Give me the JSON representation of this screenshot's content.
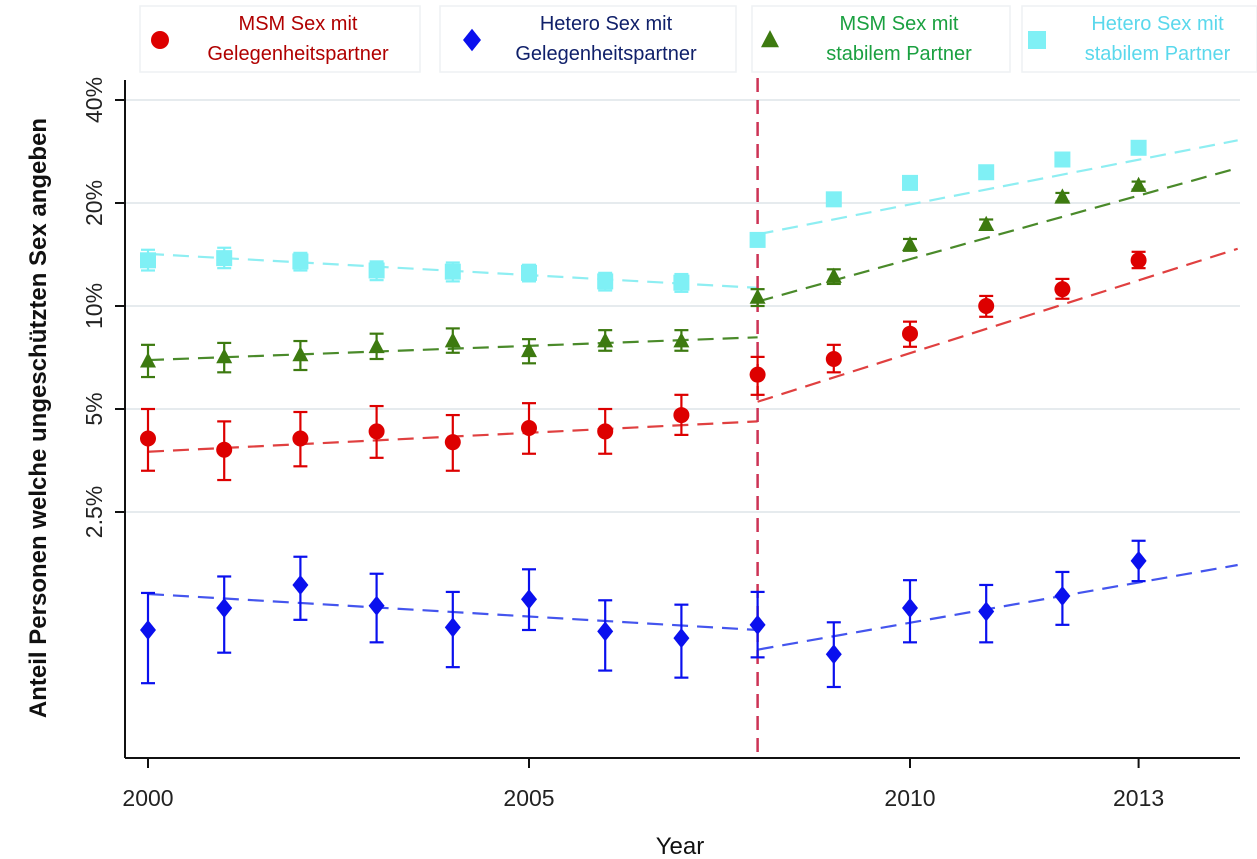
{
  "chart_data": {
    "type": "scatter",
    "title": "",
    "xlabel": "Year",
    "ylabel": "Anteil Personen welche ungeschützten Sex angeben",
    "y_scale": "log",
    "xlim": [
      1999.95,
      2014.3
    ],
    "ylim": [
      0.7,
      43
    ],
    "x_ticks": [
      2000,
      2005,
      2010,
      2013
    ],
    "x_tick_labels": [
      "2000",
      "2005",
      "2010",
      "2013"
    ],
    "y_ticks": [
      2.5,
      5,
      10,
      20,
      40
    ],
    "y_tick_labels": [
      "2.5%",
      "5%",
      "10%",
      "20%",
      "40%"
    ],
    "grid": true,
    "legend_position": "top",
    "reference_line": {
      "x": 2008,
      "color": "#cc3355",
      "style": "dashed"
    },
    "series": [
      {
        "name": "MSM  Sex mit Gelegenheitspartner",
        "color": "#dd0000",
        "line_color": "#e04040",
        "marker": "circle",
        "x": [
          2000,
          2001,
          2002,
          2003,
          2004,
          2005,
          2006,
          2007,
          2008,
          2009,
          2010,
          2011,
          2012,
          2013
        ],
        "y": [
          4.1,
          3.8,
          4.1,
          4.3,
          4.0,
          4.4,
          4.3,
          4.8,
          6.3,
          7.0,
          8.3,
          10.0,
          11.2,
          13.6
        ],
        "lower": [
          3.3,
          3.1,
          3.4,
          3.6,
          3.3,
          3.7,
          3.7,
          4.2,
          5.5,
          6.4,
          7.6,
          9.3,
          10.5,
          12.9
        ],
        "upper": [
          5.0,
          4.6,
          4.9,
          5.1,
          4.8,
          5.2,
          5.0,
          5.5,
          7.1,
          7.7,
          9.0,
          10.7,
          12.0,
          14.4
        ],
        "trend": [
          [
            2000,
            3.75
          ],
          [
            2008,
            4.6
          ],
          [
            2008,
            5.25
          ],
          [
            2014.3,
            14.7
          ]
        ]
      },
      {
        "name": "Hetero  Sex mit Gelegenheitspartner",
        "color": "#0a10ee",
        "line_color": "#4455ee",
        "marker": "diamond",
        "x": [
          2000,
          2001,
          2002,
          2003,
          2004,
          2005,
          2006,
          2007,
          2008,
          2009,
          2010,
          2011,
          2012,
          2013
        ],
        "y": [
          1.13,
          1.31,
          1.53,
          1.33,
          1.15,
          1.39,
          1.12,
          1.07,
          1.17,
          0.96,
          1.31,
          1.28,
          1.42,
          1.8
        ],
        "lower": [
          0.79,
          0.97,
          1.21,
          1.04,
          0.88,
          1.13,
          0.86,
          0.82,
          0.94,
          0.77,
          1.04,
          1.04,
          1.17,
          1.57
        ],
        "upper": [
          1.45,
          1.62,
          1.85,
          1.65,
          1.46,
          1.7,
          1.38,
          1.34,
          1.46,
          1.19,
          1.58,
          1.53,
          1.67,
          2.06
        ],
        "trend": [
          [
            2000,
            1.44
          ],
          [
            2008,
            1.13
          ],
          [
            2008,
            0.99
          ],
          [
            2014.3,
            1.75
          ]
        ]
      },
      {
        "name": "MSM  Sex mit stabilem Partner",
        "color": "#3d7a10",
        "line_color": "#4a8a2a",
        "marker": "triangle",
        "x": [
          2000,
          2001,
          2002,
          2003,
          2004,
          2005,
          2006,
          2007,
          2008,
          2009,
          2010,
          2011,
          2012,
          2013
        ],
        "y": [
          6.9,
          7.1,
          7.2,
          7.6,
          7.9,
          7.4,
          7.9,
          7.9,
          10.6,
          12.2,
          15.1,
          17.3,
          20.8,
          22.5
        ],
        "lower": [
          6.2,
          6.4,
          6.5,
          7.0,
          7.3,
          6.8,
          7.4,
          7.4,
          10.0,
          11.6,
          14.5,
          16.7,
          20.2,
          21.9
        ],
        "upper": [
          7.7,
          7.8,
          7.9,
          8.3,
          8.6,
          8.0,
          8.5,
          8.5,
          11.2,
          12.8,
          15.7,
          17.9,
          21.4,
          23.1
        ],
        "trend": [
          [
            2000,
            6.95
          ],
          [
            2008,
            8.1
          ],
          [
            2008,
            10.3
          ],
          [
            2014.3,
            25.3
          ]
        ]
      },
      {
        "name": "Hetero  Sex mit stabilem Partner",
        "color": "#7ff0f5",
        "line_color": "#8eeef2",
        "marker": "square",
        "x": [
          2000,
          2001,
          2002,
          2003,
          2004,
          2005,
          2006,
          2007,
          2008,
          2009,
          2010,
          2011,
          2012,
          2013
        ],
        "y": [
          13.6,
          13.8,
          13.5,
          12.7,
          12.6,
          12.5,
          11.8,
          11.7,
          15.6,
          20.5,
          22.9,
          24.6,
          26.8,
          29.0
        ],
        "lower": [
          12.7,
          12.9,
          12.7,
          11.9,
          11.8,
          11.8,
          11.1,
          11.0,
          15.0,
          19.9,
          22.3,
          24.0,
          26.2,
          28.4
        ],
        "upper": [
          14.6,
          14.8,
          14.3,
          13.5,
          13.4,
          13.2,
          12.5,
          12.4,
          16.2,
          21.1,
          23.5,
          25.2,
          27.4,
          29.6
        ],
        "trend": [
          [
            2000,
            14.2
          ],
          [
            2008,
            11.3
          ],
          [
            2008,
            16.2
          ],
          [
            2014.3,
            30.5
          ]
        ]
      }
    ]
  },
  "legend": [
    {
      "marker": "circle",
      "color": "#dd0000",
      "text_color": "#b00000",
      "line1": "MSM  Sex mit",
      "line2": "Gelegenheitspartner"
    },
    {
      "marker": "diamond",
      "color": "#0a10ee",
      "text_color": "#10206a",
      "line1": "Hetero  Sex mit",
      "line2": "Gelegenheitspartner"
    },
    {
      "marker": "triangle",
      "color": "#3d7a10",
      "text_color": "#1aa040",
      "line1": "MSM  Sex mit",
      "line2": "stabilem Partner"
    },
    {
      "marker": "square",
      "color": "#7ff0f5",
      "text_color": "#5ad8ec",
      "line1": "Hetero  Sex mit",
      "line2": "stabilem Partner"
    }
  ]
}
